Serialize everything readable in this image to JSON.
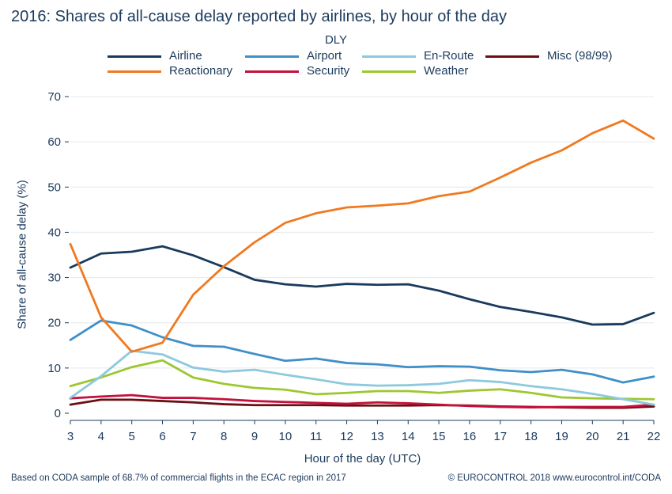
{
  "header": {
    "title": "2016: Shares of all-cause delay reported by airlines, by hour of the day"
  },
  "footer": {
    "left": "Based on CODA sample of 68.7% of commercial flights in the ECAC region in 2017",
    "right": "© EUROCONTROL 2018 www.eurocontrol.int/CODA"
  },
  "chart_data": {
    "type": "line",
    "title": "2016: Shares of all-cause delay reported by airlines, by hour of the day",
    "xlabel": "Hour of the day (UTC)",
    "ylabel": "Share of all-cause delay (%)",
    "legend_title": "DLY",
    "legend_position": "top",
    "grid": true,
    "x": [
      3,
      4,
      5,
      6,
      7,
      8,
      9,
      10,
      11,
      12,
      13,
      14,
      15,
      16,
      17,
      18,
      19,
      20,
      21,
      22
    ],
    "xlim": [
      3,
      22
    ],
    "ylim": [
      0,
      70
    ],
    "yticks": [
      0,
      10,
      20,
      30,
      40,
      50,
      60,
      70
    ],
    "series": [
      {
        "name": "Airline",
        "color": "#1a3a5c",
        "values": [
          32.2,
          35.3,
          35.7,
          36.9,
          34.9,
          32.3,
          29.5,
          28.5,
          28.0,
          28.6,
          28.4,
          28.5,
          27.1,
          25.2,
          23.5,
          22.4,
          21.2,
          19.6,
          19.7,
          22.2
        ]
      },
      {
        "name": "Airport",
        "color": "#3f8fc8",
        "values": [
          16.2,
          20.5,
          19.4,
          16.8,
          14.9,
          14.7,
          13.1,
          11.6,
          12.1,
          11.1,
          10.8,
          10.2,
          10.4,
          10.3,
          9.5,
          9.1,
          9.6,
          8.6,
          6.8,
          8.1
        ]
      },
      {
        "name": "En-Route",
        "color": "#8dc9de",
        "values": [
          3.4,
          8.2,
          13.8,
          13.0,
          10.1,
          9.2,
          9.6,
          8.5,
          7.5,
          6.4,
          6.1,
          6.2,
          6.5,
          7.3,
          6.9,
          6.0,
          5.3,
          4.3,
          3.1,
          1.9
        ]
      },
      {
        "name": "Misc (98/99)",
        "color": "#6b0f12",
        "values": [
          1.9,
          3.0,
          3.0,
          2.7,
          2.4,
          2.0,
          1.8,
          1.8,
          1.8,
          1.7,
          1.7,
          1.7,
          1.8,
          1.7,
          1.5,
          1.4,
          1.3,
          1.2,
          1.2,
          1.5
        ]
      },
      {
        "name": "Reactionary",
        "color": "#f07920",
        "values": [
          37.4,
          21.2,
          13.6,
          15.6,
          26.2,
          32.5,
          37.8,
          42.1,
          44.2,
          45.5,
          45.9,
          46.4,
          48.0,
          49.0,
          52.1,
          55.4,
          58.1,
          61.9,
          64.7,
          60.7
        ]
      },
      {
        "name": "Security",
        "color": "#c4103c",
        "values": [
          3.3,
          3.7,
          4.0,
          3.4,
          3.4,
          3.1,
          2.7,
          2.5,
          2.3,
          2.1,
          2.4,
          2.2,
          1.9,
          1.6,
          1.4,
          1.3,
          1.4,
          1.4,
          1.4,
          1.9
        ]
      },
      {
        "name": "Weather",
        "color": "#9dc72f",
        "values": [
          6.0,
          7.9,
          10.2,
          11.7,
          7.9,
          6.5,
          5.6,
          5.2,
          4.2,
          4.5,
          4.9,
          4.9,
          4.5,
          5.0,
          5.3,
          4.5,
          3.5,
          3.3,
          3.2,
          3.1
        ]
      }
    ]
  }
}
